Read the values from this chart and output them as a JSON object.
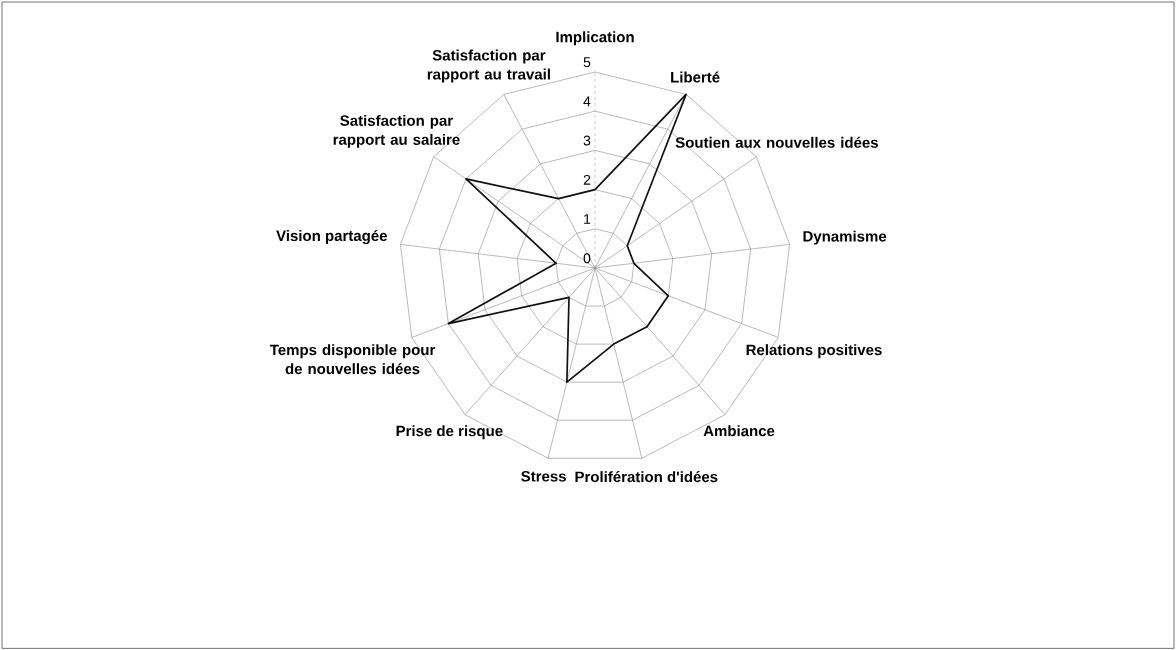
{
  "chart_data": {
    "type": "radar",
    "categories": [
      "Implication",
      "Liberté",
      "Soutien aux nouvelles idées",
      "Dynamisme",
      "Relations positives",
      "Ambiance",
      "Prolifération d'idées",
      "Stress",
      "Prise de risque",
      "Temps disponible pour de nouvelles idées",
      "Vision partagée",
      "Satisfaction par rapport au salaire",
      "Satisfaction par rapport au travail"
    ],
    "series": [
      {
        "color": "#111111",
        "values": [
          2,
          5,
          1,
          1,
          2,
          2,
          2,
          3,
          1,
          4,
          1,
          4,
          2
        ]
      }
    ],
    "ylim": [
      0,
      5
    ],
    "yticks": [
      0,
      1,
      2,
      3,
      4,
      5
    ],
    "grid": true,
    "marker": "none",
    "line_style": "solid"
  }
}
